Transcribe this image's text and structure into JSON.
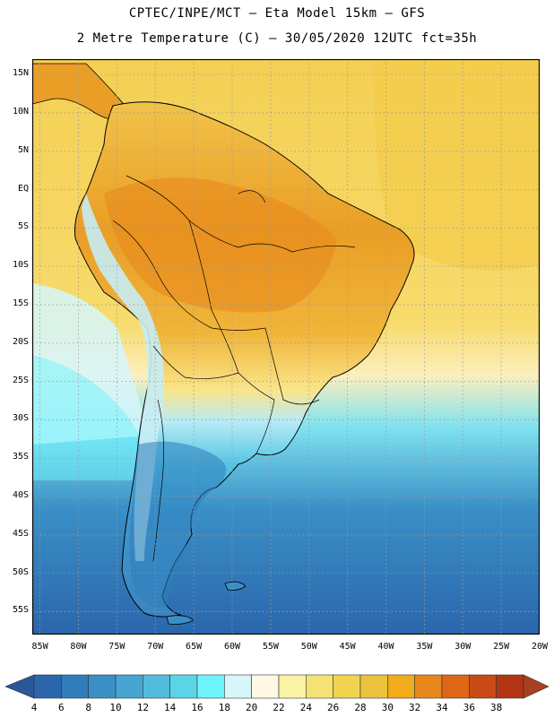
{
  "header": {
    "line1": "CPTEC/INPE/MCT –  Eta Model 15km – GFS",
    "line2": "2 Metre Temperature (C) – 30/05/2020 12UTC fct=35h"
  },
  "map": {
    "lat_labels": [
      "15N",
      "10N",
      "5N",
      "EQ",
      "5S",
      "10S",
      "15S",
      "20S",
      "25S",
      "30S",
      "35S",
      "40S",
      "45S",
      "50S",
      "55S"
    ],
    "lon_labels": [
      "85W",
      "80W",
      "75W",
      "70W",
      "65W",
      "60W",
      "55W",
      "50W",
      "45W",
      "40W",
      "35W",
      "30W",
      "25W",
      "20W"
    ],
    "lat_range": [
      17,
      -58
    ],
    "lon_range": [
      -86,
      -20
    ]
  },
  "legend": {
    "levels": [
      "4",
      "6",
      "8",
      "10",
      "12",
      "14",
      "16",
      "18",
      "20",
      "22",
      "24",
      "26",
      "28",
      "30",
      "32",
      "34",
      "36",
      "38"
    ],
    "colors": [
      "#2b66ad",
      "#2f7dbb",
      "#3a90c6",
      "#46a5d3",
      "#52bcdf",
      "#5ad5e8",
      "#6df4fb",
      "#d6f6fc",
      "#fff8e4",
      "#faf2a4",
      "#f5e272",
      "#f0d450",
      "#eac23d",
      "#f1ab1b",
      "#e8871b",
      "#dd6716",
      "#c84a14",
      "#b33413"
    ],
    "low_color": "#2a5796",
    "high_color": "#a8401f"
  },
  "palette": {
    "ocean_north": "#f4cf53",
    "ocean_mid": "#fcefbe",
    "ocean_cool": "#7fe2f0",
    "ocean_cold": "#3a90c6",
    "ocean_south": "#2b66ad",
    "land_hot": "#ea9e25",
    "land_warm": "#f0d450",
    "andes": "#c7ecf4",
    "patagonia": "#3b84c1",
    "pampas": "#58c8e6"
  }
}
